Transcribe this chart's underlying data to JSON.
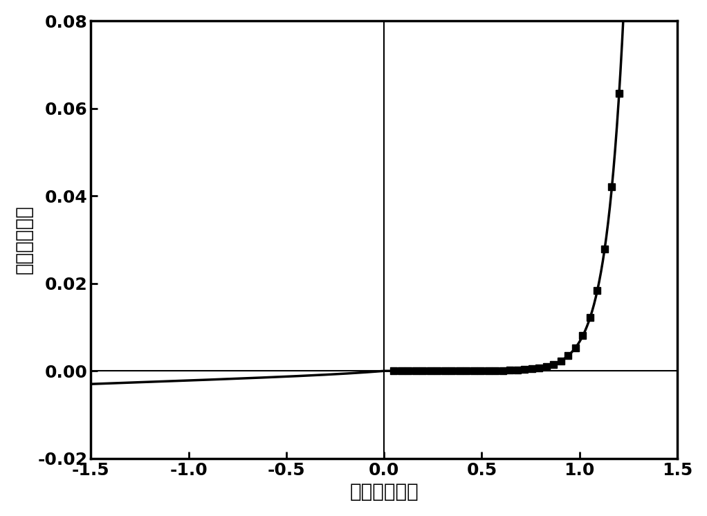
{
  "xlabel": "电压（伏特）",
  "ylabel": "电流（安培）",
  "xlim": [
    -1.5,
    1.5
  ],
  "ylim": [
    -0.02,
    0.08
  ],
  "xticks": [
    -1.5,
    -1.0,
    -0.5,
    0.0,
    0.5,
    1.0,
    1.5
  ],
  "yticks": [
    -0.02,
    0.0,
    0.02,
    0.04,
    0.06,
    0.08
  ],
  "background_color": "#ffffff",
  "line_color": "#000000",
  "marker_color": "#000000",
  "I0_fit": 1e-07,
  "n_fit": 0.09,
  "reverse_sat": -0.003,
  "marker_size": 7,
  "linewidth": 2.5,
  "xlabel_fontsize": 20,
  "ylabel_fontsize": 20,
  "tick_fontsize": 18,
  "tick_fontweight": "bold"
}
